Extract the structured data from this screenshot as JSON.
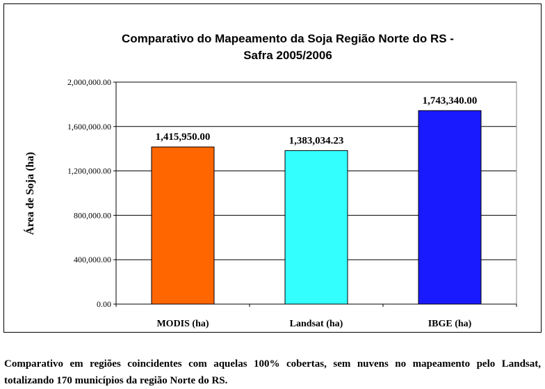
{
  "chart_data": {
    "type": "bar",
    "title_lines": [
      "Comparativo do Mapeamento da Soja Região Norte do RS -",
      "Safra 2005/2006"
    ],
    "y_label": "Área de Soja (ha)",
    "categories": [
      "MODIS (ha)",
      "Landsat (ha)",
      "IBGE (ha)"
    ],
    "values": [
      1415950,
      1383034.23,
      1743340
    ],
    "value_labels": [
      "1,415,950.00",
      "1,383,034.23",
      "1,743,340.00"
    ],
    "colors": [
      "#ff6600",
      "#33ffff",
      "#1a1aff"
    ],
    "ylim": [
      0,
      2000000
    ],
    "yticks": [
      {
        "value": 0,
        "label": "0.00"
      },
      {
        "value": 400000,
        "label": "400,000.00"
      },
      {
        "value": 800000,
        "label": "800,000.00"
      },
      {
        "value": 1200000,
        "label": "1,200,000.00"
      },
      {
        "value": 1600000,
        "label": "1,600,000.00"
      },
      {
        "value": 2000000,
        "label": "2,000,000.00"
      }
    ],
    "grid": true
  },
  "caption": "Comparativo em regiões coincidentes com aquelas 100% cobertas, sem nuvens no mapeamento pelo Landsat, totalizando 170 municípios da região Norte do RS."
}
